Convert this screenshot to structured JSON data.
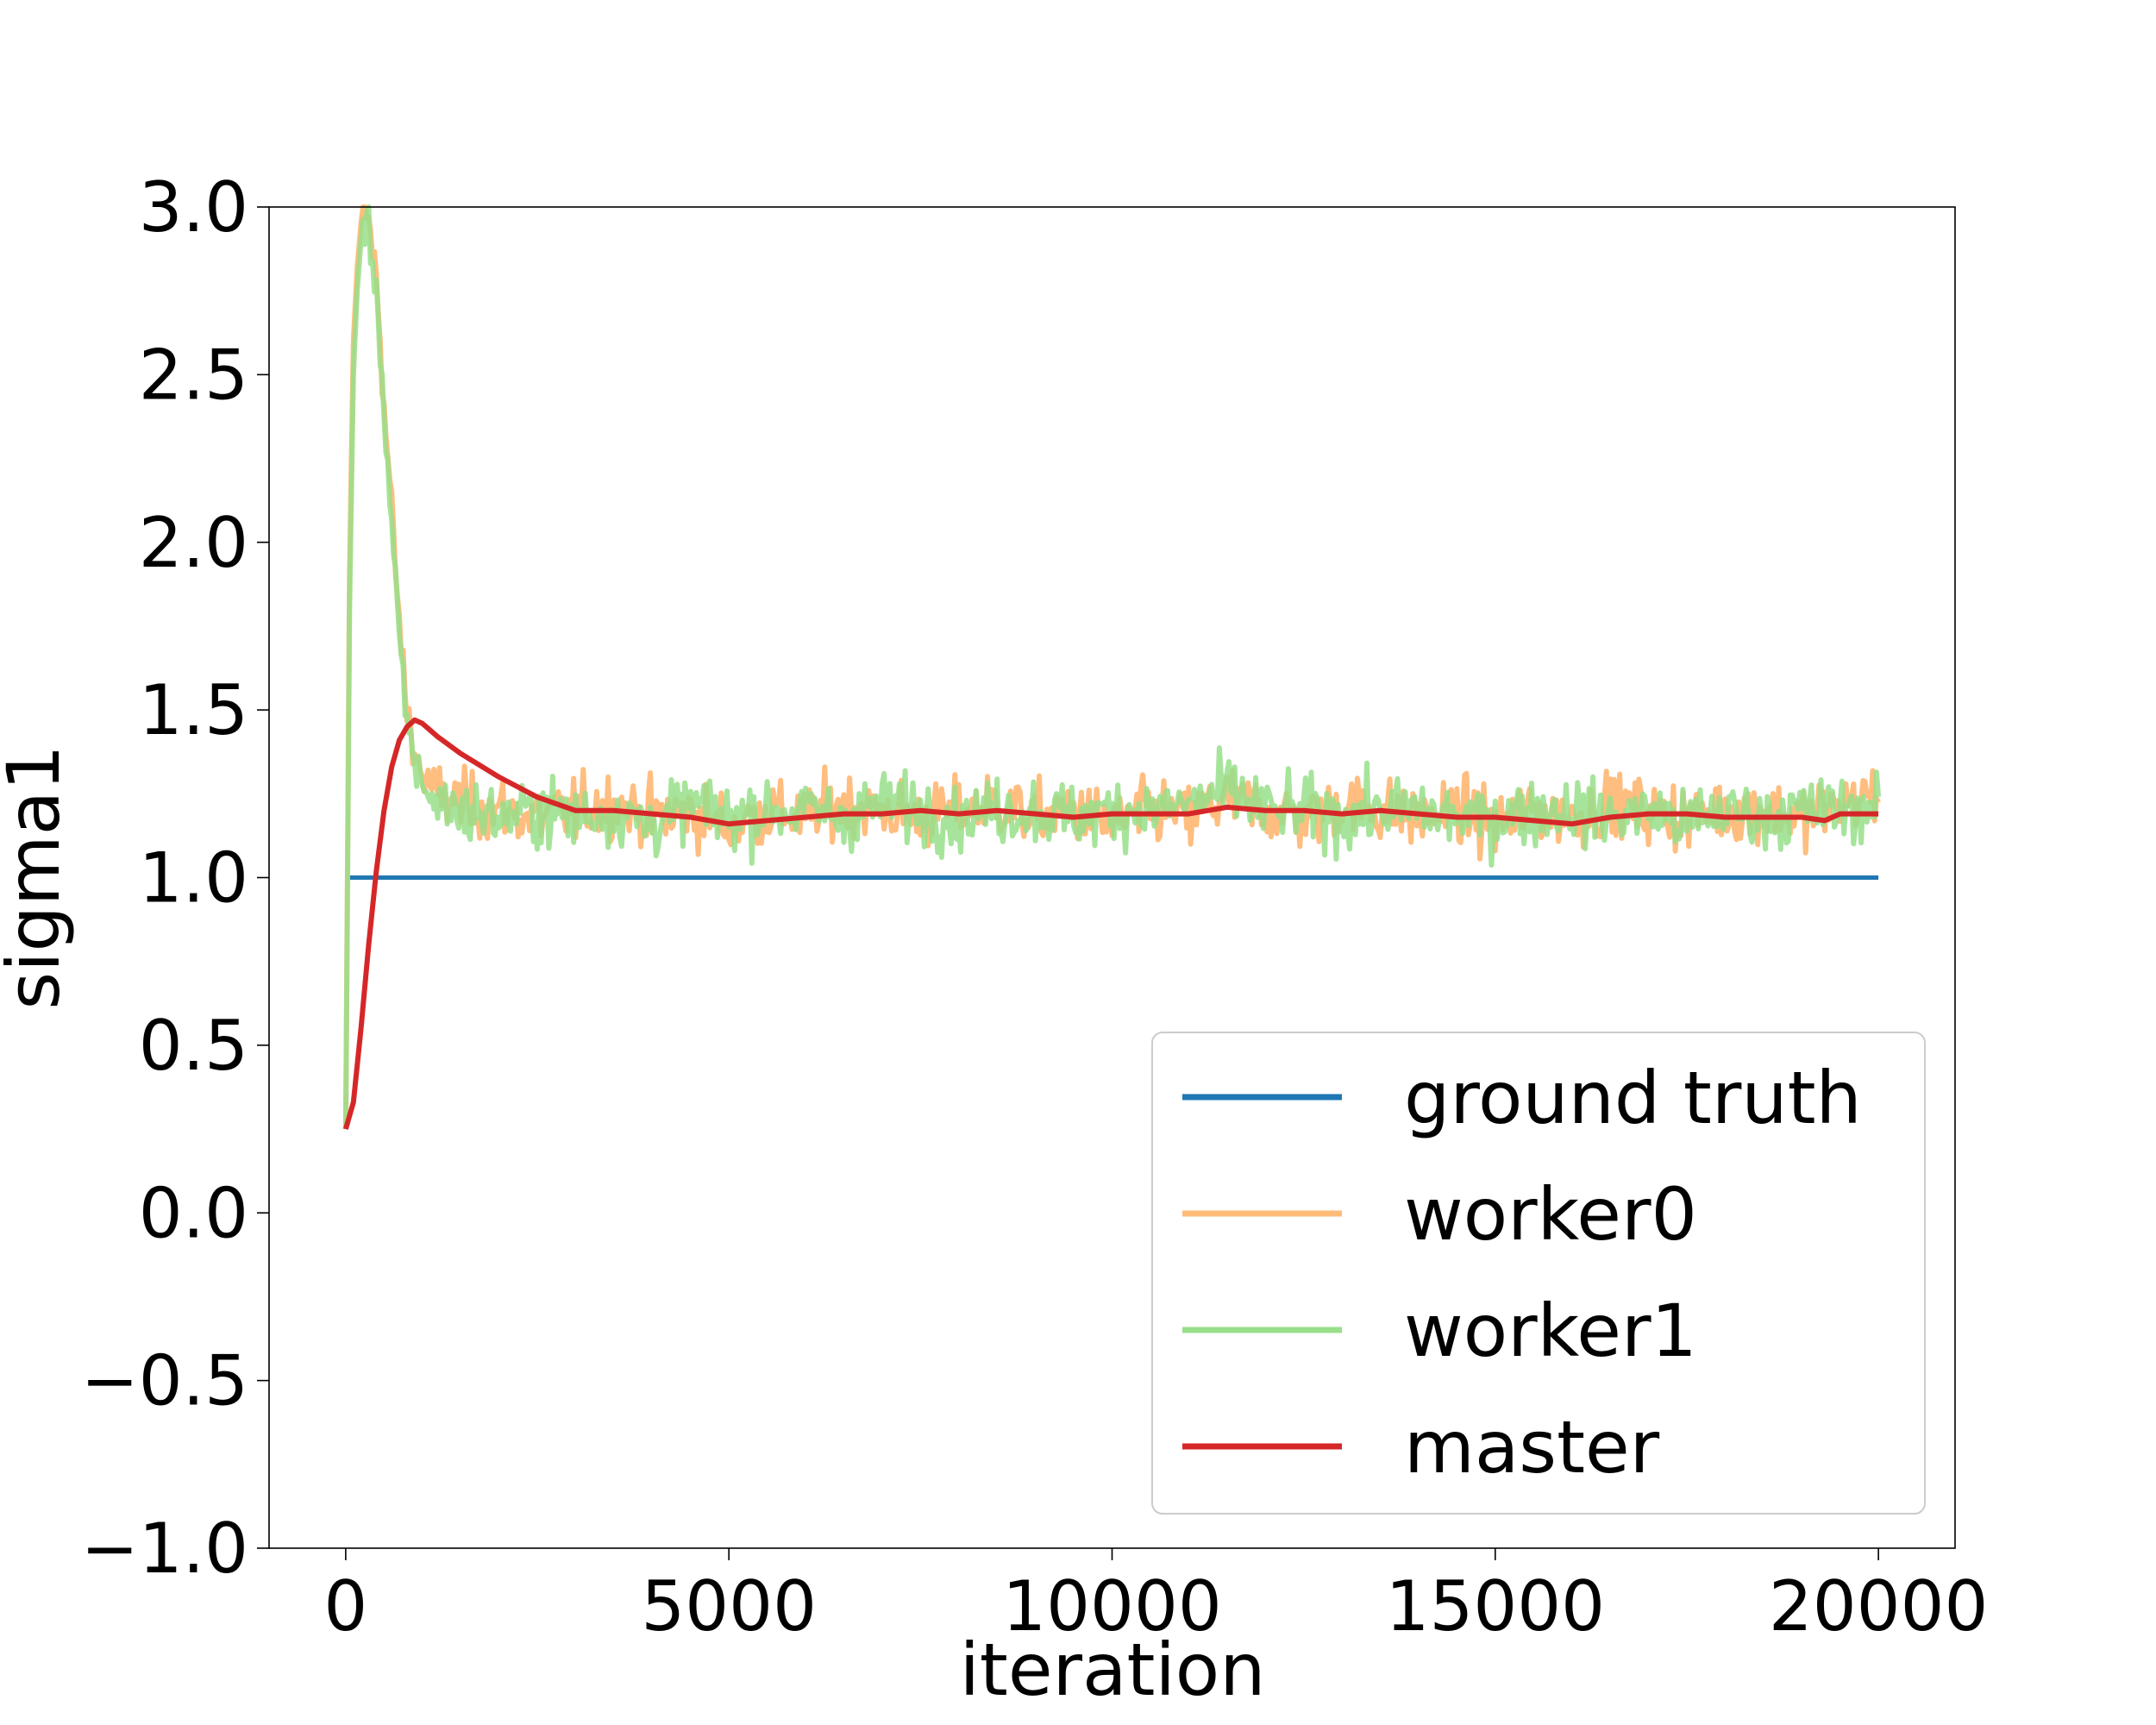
{
  "chart_data": {
    "type": "line",
    "title": "",
    "xlabel": "iteration",
    "ylabel": "sigma1",
    "xlim": [
      -1000,
      21000
    ],
    "ylim": [
      -1.0,
      3.0
    ],
    "xticks": [
      0,
      5000,
      10000,
      15000,
      20000
    ],
    "xtick_labels": [
      "0",
      "5000",
      "10000",
      "15000",
      "20000"
    ],
    "yticks": [
      -1.0,
      -0.5,
      0.0,
      0.5,
      1.0,
      1.5,
      2.0,
      2.5,
      3.0
    ],
    "ytick_labels": [
      "−1.0",
      "−0.5",
      "0.0",
      "0.5",
      "1.0",
      "1.5",
      "2.0",
      "2.5",
      "3.0"
    ],
    "grid": false,
    "legend_position": "lower-right",
    "series": [
      {
        "name": "ground truth",
        "color": "#1f77b4",
        "x": [
          0,
          20000
        ],
        "y": [
          1.0,
          1.0
        ]
      },
      {
        "name": "worker0",
        "color": "#ffbb78",
        "x": [
          0,
          50,
          100,
          150,
          200,
          250,
          300,
          350,
          400,
          450,
          500,
          600,
          700,
          800,
          900,
          1000,
          1200,
          1500,
          2000,
          2500,
          3000,
          3500,
          4000,
          4500,
          5000,
          5500,
          6000,
          6500,
          7000,
          7500,
          8000,
          8500,
          9000,
          9500,
          10000,
          10500,
          11000,
          11500,
          12000,
          12500,
          13000,
          13500,
          14000,
          14500,
          15000,
          15500,
          16000,
          16500,
          17000,
          17500,
          18000,
          18500,
          19000,
          19500,
          20000
        ],
        "y": [
          0.25,
          1.9,
          2.6,
          2.82,
          2.95,
          3.0,
          2.95,
          2.88,
          2.78,
          2.62,
          2.4,
          2.1,
          1.75,
          1.5,
          1.38,
          1.3,
          1.25,
          1.22,
          1.2,
          1.18,
          1.2,
          1.22,
          1.18,
          1.2,
          1.15,
          1.2,
          1.18,
          1.22,
          1.2,
          1.18,
          1.2,
          1.22,
          1.18,
          1.2,
          1.16,
          1.2,
          1.18,
          1.24,
          1.2,
          1.18,
          1.22,
          1.2,
          1.18,
          1.2,
          1.16,
          1.2,
          1.18,
          1.22,
          1.2,
          1.18,
          1.2,
          1.2,
          1.18,
          1.22,
          1.25
        ]
      },
      {
        "name": "worker1",
        "color": "#98df8a",
        "x": [
          0,
          50,
          100,
          150,
          200,
          250,
          300,
          350,
          400,
          450,
          500,
          600,
          700,
          800,
          900,
          1000,
          1200,
          1500,
          2000,
          2500,
          3000,
          3500,
          4000,
          4500,
          5000,
          5500,
          6000,
          6500,
          7000,
          7500,
          8000,
          8500,
          9000,
          9500,
          10000,
          10500,
          11000,
          11500,
          12000,
          12500,
          13000,
          13500,
          14000,
          14500,
          15000,
          15500,
          16000,
          16500,
          17000,
          17500,
          18000,
          18500,
          19000,
          19500,
          20000
        ],
        "y": [
          0.25,
          1.8,
          2.5,
          2.75,
          2.9,
          2.95,
          2.92,
          2.85,
          2.75,
          2.6,
          2.38,
          2.05,
          1.7,
          1.45,
          1.35,
          1.28,
          1.22,
          1.2,
          1.18,
          1.2,
          1.18,
          1.2,
          1.16,
          1.22,
          1.18,
          1.2,
          1.2,
          1.18,
          1.22,
          1.2,
          1.18,
          1.2,
          1.2,
          1.18,
          1.2,
          1.2,
          1.22,
          1.26,
          1.2,
          1.2,
          1.18,
          1.2,
          1.2,
          1.18,
          1.18,
          1.2,
          1.2,
          1.18,
          1.2,
          1.16,
          1.2,
          1.18,
          1.2,
          1.2,
          1.22
        ]
      },
      {
        "name": "master",
        "color": "#d62728",
        "x": [
          0,
          100,
          200,
          300,
          400,
          500,
          600,
          700,
          800,
          900,
          1000,
          1200,
          1500,
          2000,
          2500,
          3000,
          3500,
          4000,
          4500,
          5000,
          5500,
          6000,
          6500,
          7000,
          7500,
          8000,
          8500,
          9000,
          9500,
          10000,
          10500,
          11000,
          11500,
          12000,
          12500,
          13000,
          13500,
          14000,
          14500,
          15000,
          15500,
          16000,
          16500,
          17000,
          17500,
          18000,
          18500,
          19000,
          19300,
          19500,
          20000
        ],
        "y": [
          0.25,
          0.33,
          0.55,
          0.8,
          1.02,
          1.2,
          1.33,
          1.41,
          1.45,
          1.47,
          1.46,
          1.42,
          1.37,
          1.3,
          1.24,
          1.2,
          1.2,
          1.19,
          1.18,
          1.16,
          1.17,
          1.18,
          1.19,
          1.19,
          1.2,
          1.19,
          1.2,
          1.19,
          1.18,
          1.19,
          1.19,
          1.19,
          1.21,
          1.2,
          1.2,
          1.19,
          1.2,
          1.19,
          1.18,
          1.18,
          1.17,
          1.16,
          1.18,
          1.19,
          1.19,
          1.18,
          1.18,
          1.18,
          1.17,
          1.19,
          1.19
        ]
      }
    ]
  }
}
